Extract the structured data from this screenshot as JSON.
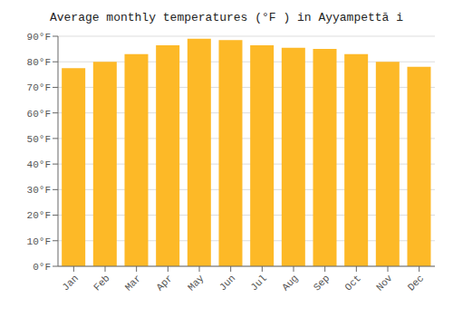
{
  "chart_data": {
    "type": "bar",
    "title": "Average monthly temperatures (°F ) in Ayyampettā i",
    "categories": [
      "Jan",
      "Feb",
      "Mar",
      "Apr",
      "May",
      "Jun",
      "Jul",
      "Aug",
      "Sep",
      "Oct",
      "Nov",
      "Dec"
    ],
    "values": [
      77.5,
      80.0,
      83.0,
      86.5,
      89.0,
      88.5,
      86.5,
      85.5,
      85.0,
      83.0,
      80.0,
      78.0
    ],
    "color": "#FDB927",
    "ylim": [
      0,
      90
    ],
    "yticks": [
      {
        "value": 0,
        "label": "0°F"
      },
      {
        "value": 10,
        "label": "10°F"
      },
      {
        "value": 20,
        "label": "20°F"
      },
      {
        "value": 30,
        "label": "30°F"
      },
      {
        "value": 40,
        "label": "40°F"
      },
      {
        "value": 50,
        "label": "50°F"
      },
      {
        "value": 60,
        "label": "60°F"
      },
      {
        "value": 70,
        "label": "70°F"
      },
      {
        "value": 80,
        "label": "80°F"
      },
      {
        "value": 90,
        "label": "90°F"
      }
    ],
    "grid": true
  }
}
